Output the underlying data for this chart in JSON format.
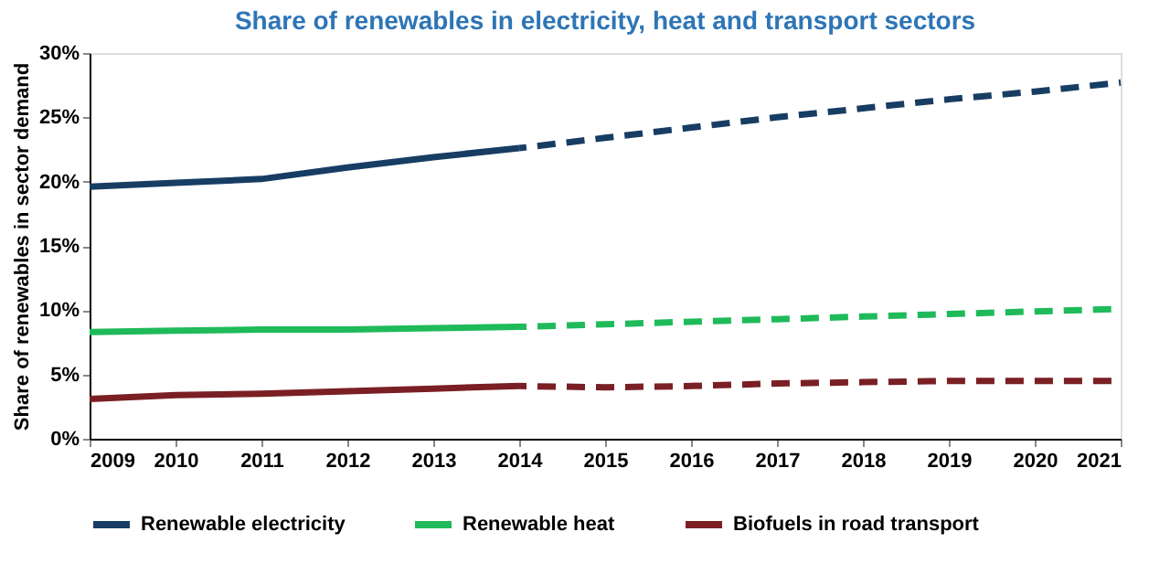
{
  "chart_data": {
    "type": "line",
    "title": "Share of renewables in electricity, heat and transport sectors",
    "ylabel": "Share of renewables in sector demand",
    "xlim": [
      2009,
      2021
    ],
    "xticks": [
      2009,
      2010,
      2011,
      2012,
      2013,
      2014,
      2015,
      2016,
      2017,
      2018,
      2019,
      2020,
      2021
    ],
    "ylim": [
      0,
      30
    ],
    "yticks": [
      {
        "value": 0,
        "label": "0%"
      },
      {
        "value": 5,
        "label": "5%"
      },
      {
        "value": 10,
        "label": "10%"
      },
      {
        "value": 15,
        "label": "15%"
      },
      {
        "value": 20,
        "label": "20%"
      },
      {
        "value": 25,
        "label": "25%"
      },
      {
        "value": 30,
        "label": "30%"
      }
    ],
    "grid": false,
    "legend": "bottom",
    "marker": "none",
    "series": [
      {
        "name": "Renewable electricity",
        "color": "#173d63",
        "line_style": "solid",
        "x": [
          2009,
          2010,
          2011,
          2012,
          2013,
          2014
        ],
        "values": [
          19.6,
          19.9,
          20.2,
          21.1,
          21.9,
          22.6
        ]
      },
      {
        "color": "#173d63",
        "line_style": "dashed",
        "x": [
          2014,
          2015,
          2016,
          2017,
          2018,
          2019,
          2020,
          2021
        ],
        "values": [
          22.6,
          23.4,
          24.2,
          25.0,
          25.7,
          26.4,
          27.0,
          27.7
        ]
      },
      {
        "name": "Renewable heat",
        "color": "#1fba5a",
        "line_style": "solid",
        "x": [
          2009,
          2010,
          2011,
          2012,
          2013,
          2014
        ],
        "values": [
          8.3,
          8.4,
          8.5,
          8.5,
          8.6,
          8.7
        ]
      },
      {
        "color": "#1fba5a",
        "line_style": "dashed",
        "x": [
          2014,
          2015,
          2016,
          2017,
          2018,
          2019,
          2020,
          2021
        ],
        "values": [
          8.7,
          8.9,
          9.1,
          9.3,
          9.5,
          9.7,
          9.9,
          10.1
        ]
      },
      {
        "name": "Biofuels in road transport",
        "color": "#7a1f24",
        "line_style": "solid",
        "x": [
          2009,
          2010,
          2011,
          2012,
          2013,
          2014
        ],
        "values": [
          3.1,
          3.4,
          3.5,
          3.7,
          3.9,
          4.1
        ]
      },
      {
        "color": "#7a1f24",
        "line_style": "dashed",
        "x": [
          2014,
          2015,
          2016,
          2017,
          2018,
          2019,
          2020,
          2021
        ],
        "values": [
          4.1,
          4.0,
          4.1,
          4.3,
          4.4,
          4.5,
          4.5,
          4.5
        ]
      }
    ]
  }
}
